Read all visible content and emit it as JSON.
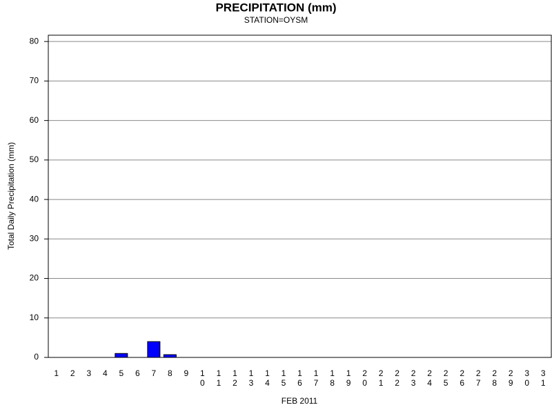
{
  "chart_data": {
    "type": "bar",
    "title": "PRECIPITATION (mm)",
    "subtitle": "STATION=OYSM",
    "x_label": "FEB 2011",
    "y_label": "Total Daily Precipitation (mm)",
    "categories": [
      "1",
      "2",
      "3",
      "4",
      "5",
      "6",
      "7",
      "8",
      "9",
      "10",
      "11",
      "12",
      "13",
      "14",
      "15",
      "16",
      "17",
      "18",
      "19",
      "20",
      "21",
      "22",
      "23",
      "24",
      "25",
      "26",
      "27",
      "28",
      "29",
      "30",
      "31"
    ],
    "values": [
      0,
      0,
      0,
      0,
      1,
      0,
      4,
      0.7,
      0,
      0,
      0,
      0,
      0,
      0,
      0,
      0,
      0,
      0,
      0,
      0,
      0,
      0,
      0,
      0,
      0,
      0,
      0,
      0,
      0,
      0,
      0
    ],
    "color": "#0000ff",
    "ylim": [
      0,
      81.6
    ],
    "yticks": [
      0,
      10,
      20,
      30,
      40,
      50,
      60,
      70,
      80
    ],
    "grid": true
  }
}
